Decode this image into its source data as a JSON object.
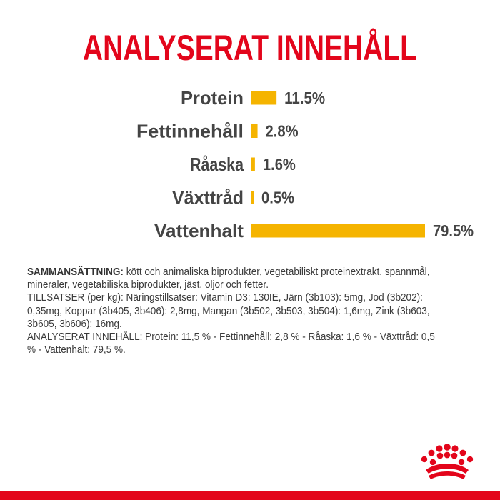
{
  "colors": {
    "accent": "#e3051b",
    "bar": "#f5b400",
    "text": "#3a3a3a",
    "label": "#444444"
  },
  "icons": [
    "royal-canin-crown-logo"
  ],
  "chart_data": {
    "type": "bar",
    "orientation": "horizontal",
    "title": "ANALYSERAT INNEHÅLL",
    "categories": [
      "Protein",
      "Fettinnehåll",
      "Råaska",
      "Växttråd",
      "Vattenhalt"
    ],
    "values": [
      11.5,
      2.8,
      1.6,
      0.5,
      79.5
    ],
    "value_labels": [
      "11.5%",
      "2.8%",
      "1.6%",
      "0.5%",
      "79.5%"
    ],
    "unit": "%",
    "grid": false,
    "legend": "none"
  },
  "composition": {
    "heading": "SAMMANSÄTTNING:",
    "ingredients": " kött och animaliska biprodukter, vegetabiliskt proteinextrakt, spannmål, mineraler, vegetabiliska biprodukter, jäst, oljor och fetter.",
    "additives": "TILLSATSER (per kg): Näringstillsatser: Vitamin D3: 130IE, Järn (3b103): 5mg, Jod (3b202): 0,35mg, Koppar (3b405, 3b406): 2,8mg, Mangan (3b502, 3b503, 3b504): 1,6mg, Zink (3b603, 3b605, 3b606): 16mg.",
    "analysis": "ANALYSERAT INNEHÅLL: Protein: 11,5 % - Fettinnehåll: 2,8 % - Råaska: 1,6 % - Växttråd: 0,5 % - Vattenhalt: 79,5 %."
  }
}
